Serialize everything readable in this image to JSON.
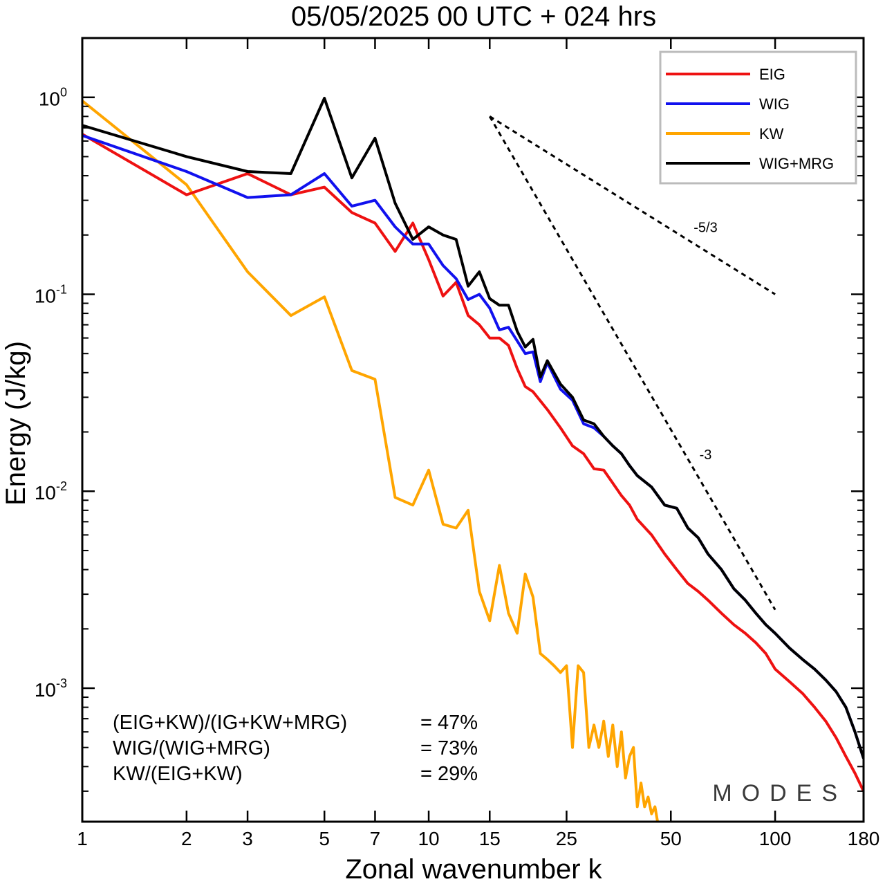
{
  "chart_data": {
    "type": "line",
    "title": "05/05/2025  00 UTC  + 024 hrs",
    "xlabel": "Zonal wavenumber k",
    "ylabel": "Energy (J/kg)",
    "xscale": "log",
    "yscale": "log",
    "xlim": [
      1,
      180
    ],
    "ylim": [
      0.00021,
      2.0
    ],
    "x_ticks": [
      1,
      2,
      3,
      5,
      7,
      10,
      15,
      25,
      50,
      100,
      180
    ],
    "y_ticks": [
      {
        "base": "10",
        "exp": "0",
        "value": 1
      },
      {
        "base": "10",
        "exp": "-1",
        "value": 0.1
      },
      {
        "base": "10",
        "exp": "-2",
        "value": 0.01
      },
      {
        "base": "10",
        "exp": "-3",
        "value": 0.001
      }
    ],
    "grid": false,
    "legend_position": "top-right",
    "colors": {
      "EIG": "#ee1111",
      "WIG": "#1111ee",
      "KW": "#ffa500",
      "WIG+MRG": "#000000"
    },
    "series": [
      {
        "name": "EIG",
        "color": "#ee1111",
        "x": [
          1,
          2,
          3,
          4,
          5,
          6,
          7,
          8,
          9,
          10,
          11,
          12,
          13,
          14,
          15,
          16,
          17,
          18,
          19,
          20,
          22,
          24,
          26,
          28,
          30,
          32,
          34,
          36,
          38,
          40,
          44,
          48,
          52,
          56,
          60,
          64,
          70,
          76,
          82,
          88,
          94,
          100,
          110,
          120,
          130,
          140,
          150,
          160,
          170,
          180
        ],
        "y": [
          0.65,
          0.32,
          0.41,
          0.32,
          0.35,
          0.26,
          0.23,
          0.165,
          0.23,
          0.15,
          0.098,
          0.115,
          0.078,
          0.07,
          0.06,
          0.06,
          0.055,
          0.042,
          0.034,
          0.032,
          0.026,
          0.021,
          0.017,
          0.0155,
          0.013,
          0.0128,
          0.011,
          0.0095,
          0.0085,
          0.0072,
          0.006,
          0.0048,
          0.004,
          0.0034,
          0.0031,
          0.0028,
          0.0024,
          0.0021,
          0.0019,
          0.0017,
          0.0015,
          0.00125,
          0.00108,
          0.00094,
          0.0008,
          0.00068,
          0.00056,
          0.00045,
          0.00037,
          0.0003
        ]
      },
      {
        "name": "WIG",
        "color": "#1111ee",
        "x": [
          1,
          2,
          3,
          4,
          5,
          6,
          7,
          8,
          9,
          10,
          11,
          12,
          13,
          14,
          15,
          16,
          17,
          18,
          19,
          20,
          21,
          22,
          24,
          26,
          28,
          30,
          32,
          34,
          36,
          38,
          40,
          44,
          48,
          52,
          56,
          60,
          64,
          70,
          76,
          82,
          88,
          94,
          100,
          110,
          120,
          130,
          140,
          150,
          160,
          170,
          180
        ],
        "y": [
          0.64,
          0.42,
          0.31,
          0.32,
          0.41,
          0.28,
          0.3,
          0.22,
          0.18,
          0.18,
          0.14,
          0.12,
          0.094,
          0.1,
          0.085,
          0.066,
          0.068,
          0.058,
          0.05,
          0.051,
          0.036,
          0.045,
          0.033,
          0.029,
          0.022,
          0.021,
          0.019,
          0.017,
          0.0155,
          0.0135,
          0.012,
          0.0105,
          0.0085,
          0.0082,
          0.0065,
          0.0058,
          0.0048,
          0.004,
          0.0032,
          0.0028,
          0.0024,
          0.0021,
          0.0019,
          0.0016,
          0.0014,
          0.00125,
          0.0011,
          0.00096,
          0.0008,
          0.0006,
          0.00044
        ]
      },
      {
        "name": "KW",
        "color": "#ffa500",
        "x": [
          1,
          2,
          3,
          4,
          5,
          6,
          7,
          8,
          9,
          10,
          11,
          12,
          13,
          14,
          15,
          16,
          17,
          18,
          19,
          20,
          21,
          22,
          23,
          24,
          25,
          26,
          27,
          28,
          29,
          30,
          31,
          32,
          33,
          34,
          35,
          36,
          37,
          38,
          39,
          40,
          41,
          42,
          43,
          44,
          45,
          46
        ],
        "y": [
          0.96,
          0.36,
          0.13,
          0.078,
          0.097,
          0.041,
          0.037,
          0.0093,
          0.0085,
          0.0128,
          0.0068,
          0.0065,
          0.008,
          0.0031,
          0.0022,
          0.0042,
          0.0024,
          0.0019,
          0.0038,
          0.0029,
          0.0015,
          0.0014,
          0.0013,
          0.0012,
          0.0013,
          0.0005,
          0.0013,
          0.0012,
          0.0005,
          0.00065,
          0.0005,
          0.00068,
          0.00045,
          0.00065,
          0.0004,
          0.0006,
          0.00035,
          0.00045,
          0.0005,
          0.00025,
          0.00033,
          0.00025,
          0.00028,
          0.00023,
          0.00025,
          0.0002
        ]
      },
      {
        "name": "WIG+MRG",
        "color": "#000000",
        "x": [
          1,
          2,
          3,
          4,
          5,
          6,
          7,
          8,
          9,
          10,
          11,
          12,
          13,
          14,
          15,
          16,
          17,
          18,
          19,
          20,
          21,
          22,
          24,
          26,
          28,
          30,
          32,
          34,
          36,
          38,
          40,
          44,
          48,
          52,
          56,
          60,
          64,
          70,
          76,
          82,
          88,
          94,
          100,
          110,
          120,
          130,
          140,
          150,
          160,
          170,
          180
        ],
        "y": [
          0.72,
          0.5,
          0.42,
          0.41,
          0.99,
          0.39,
          0.62,
          0.29,
          0.19,
          0.22,
          0.2,
          0.19,
          0.11,
          0.13,
          0.095,
          0.088,
          0.088,
          0.065,
          0.054,
          0.059,
          0.038,
          0.046,
          0.035,
          0.03,
          0.023,
          0.022,
          0.019,
          0.017,
          0.0155,
          0.0135,
          0.012,
          0.0105,
          0.0085,
          0.0082,
          0.0065,
          0.0058,
          0.0048,
          0.004,
          0.0032,
          0.0028,
          0.0024,
          0.0021,
          0.0019,
          0.0016,
          0.0014,
          0.00125,
          0.0011,
          0.00096,
          0.0008,
          0.0006,
          0.00044
        ]
      }
    ],
    "reference_lines": [
      {
        "label": "-5/3",
        "x": [
          15,
          100
        ],
        "y": [
          0.8,
          0.1
        ]
      },
      {
        "label": "-3",
        "x": [
          15,
          100
        ],
        "y": [
          0.8,
          0.0025
        ]
      }
    ],
    "annotations": [
      {
        "label": "(EIG+KW)/(IG+KW+MRG)",
        "value": "= 47%"
      },
      {
        "label": "WIG/(WIG+MRG)",
        "value": "= 73%"
      },
      {
        "label": "KW/(EIG+KW)",
        "value": "= 29%"
      }
    ],
    "watermark": "MODES"
  }
}
